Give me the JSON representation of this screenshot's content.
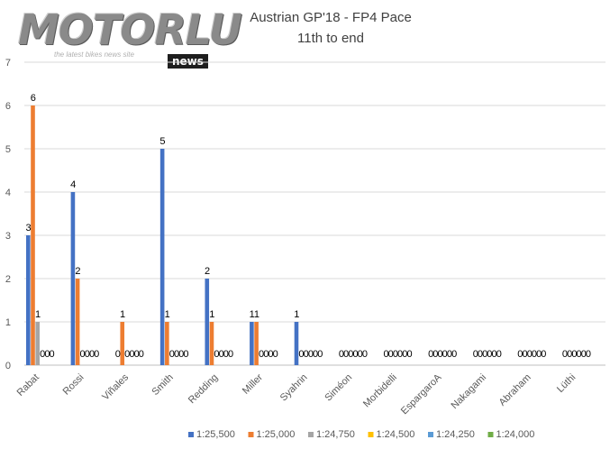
{
  "logo": {
    "name": "MOTORLU",
    "tagline": "the latest bikes news site",
    "badge": "news"
  },
  "chart_data": {
    "type": "bar",
    "title": "Austrian GP'18 - FP4 Pace",
    "subtitle": "11th to end",
    "xlabel": "",
    "ylabel": "",
    "ylim": [
      0,
      7
    ],
    "yticks": [
      0,
      1,
      2,
      3,
      4,
      5,
      6,
      7
    ],
    "grid": true,
    "legend_position": "bottom",
    "categories": [
      "Rabat",
      "Rossi",
      "Viñales",
      "Smith",
      "Redding",
      "Miller",
      "Syahrin",
      "Siméon",
      "Morbidelli",
      "EspargaroA",
      "Nakagami",
      "Abraham",
      "Lüthi"
    ],
    "series": [
      {
        "name": "1:25,500",
        "color": "#4472C4",
        "values": [
          3,
          4,
          0,
          5,
          2,
          1,
          1,
          0,
          0,
          0,
          0,
          0,
          0
        ]
      },
      {
        "name": "1:25,000",
        "color": "#ED7D31",
        "values": [
          6,
          2,
          1,
          1,
          1,
          1,
          0,
          0,
          0,
          0,
          0,
          0,
          0
        ]
      },
      {
        "name": "1:24,750",
        "color": "#A5A5A5",
        "values": [
          1,
          0,
          0,
          0,
          0,
          0,
          0,
          0,
          0,
          0,
          0,
          0,
          0
        ]
      },
      {
        "name": "1:24,500",
        "color": "#FFC000",
        "values": [
          0,
          0,
          0,
          0,
          0,
          0,
          0,
          0,
          0,
          0,
          0,
          0,
          0
        ]
      },
      {
        "name": "1:24,250",
        "color": "#5B9BD5",
        "values": [
          0,
          0,
          0,
          0,
          0,
          0,
          0,
          0,
          0,
          0,
          0,
          0,
          0
        ]
      },
      {
        "name": "1:24,000",
        "color": "#70AD47",
        "values": [
          0,
          0,
          0,
          0,
          0,
          0,
          0,
          0,
          0,
          0,
          0,
          0,
          0
        ]
      }
    ]
  }
}
